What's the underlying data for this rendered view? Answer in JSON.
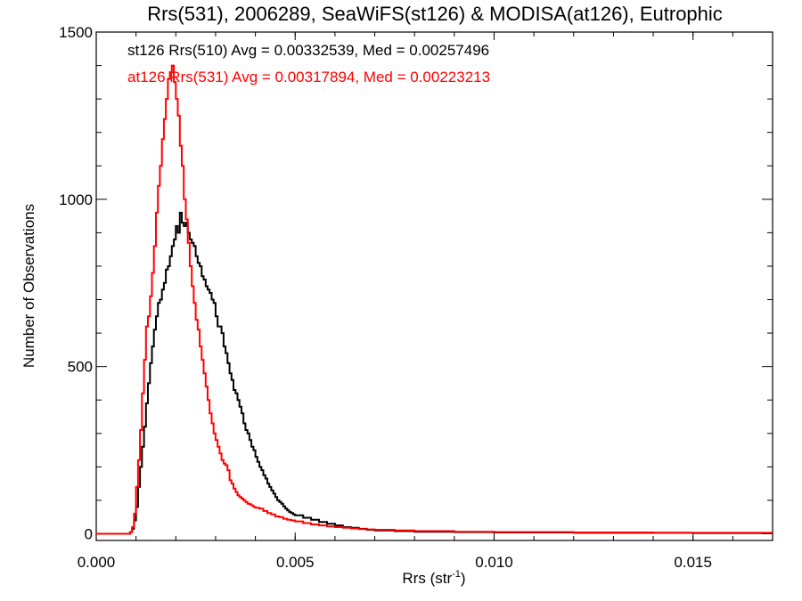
{
  "chart_data": {
    "type": "line",
    "title": "Rrs(531), 2006289, SeaWiFS(st126) & MODISA(at126), Eutrophic",
    "xlabel_main": "Rrs (str",
    "xlabel_sup": "-1",
    "xlabel_close": ")",
    "ylabel": "Number of Observations",
    "xlim": [
      0.0,
      0.017
    ],
    "ylim": [
      -20,
      1500
    ],
    "xticks": [
      {
        "value": 0.0,
        "label": "0.000"
      },
      {
        "value": 0.005,
        "label": "0.005"
      },
      {
        "value": 0.01,
        "label": "0.010"
      },
      {
        "value": 0.015,
        "label": "0.015"
      }
    ],
    "yticks": [
      {
        "value": 0,
        "label": "0"
      },
      {
        "value": 500,
        "label": "500"
      },
      {
        "value": 1000,
        "label": "1000"
      },
      {
        "value": 1500,
        "label": "1500"
      }
    ],
    "grid": false,
    "legend_placement": "top-left",
    "series": [
      {
        "name": "st126 Rrs(510) Avg = 0.00332539, Med = 0.00257496",
        "color": "#000000",
        "points": [
          [
            0.0,
            0
          ],
          [
            0.0007,
            0
          ],
          [
            0.00085,
            5
          ],
          [
            0.0009,
            15
          ],
          [
            0.00095,
            40
          ],
          [
            0.001,
            80
          ],
          [
            0.00105,
            140
          ],
          [
            0.0011,
            200
          ],
          [
            0.00115,
            260
          ],
          [
            0.0012,
            320
          ],
          [
            0.00125,
            390
          ],
          [
            0.0013,
            450
          ],
          [
            0.00135,
            510
          ],
          [
            0.0014,
            560
          ],
          [
            0.00145,
            610
          ],
          [
            0.0015,
            650
          ],
          [
            0.00155,
            690
          ],
          [
            0.0016,
            700
          ],
          [
            0.00165,
            730
          ],
          [
            0.0017,
            750
          ],
          [
            0.00175,
            790
          ],
          [
            0.0018,
            800
          ],
          [
            0.00185,
            830
          ],
          [
            0.0019,
            860
          ],
          [
            0.00195,
            880
          ],
          [
            0.002,
            920
          ],
          [
            0.00205,
            900
          ],
          [
            0.0021,
            960
          ],
          [
            0.00215,
            930
          ],
          [
            0.0022,
            920
          ],
          [
            0.00225,
            930
          ],
          [
            0.0023,
            900
          ],
          [
            0.00235,
            880
          ],
          [
            0.0024,
            870
          ],
          [
            0.00245,
            860
          ],
          [
            0.0025,
            830
          ],
          [
            0.00255,
            810
          ],
          [
            0.0026,
            800
          ],
          [
            0.00265,
            770
          ],
          [
            0.0027,
            760
          ],
          [
            0.00275,
            740
          ],
          [
            0.0028,
            730
          ],
          [
            0.00285,
            720
          ],
          [
            0.0029,
            700
          ],
          [
            0.00295,
            690
          ],
          [
            0.003,
            650
          ],
          [
            0.00305,
            620
          ],
          [
            0.0031,
            620
          ],
          [
            0.00315,
            600
          ],
          [
            0.0032,
            560
          ],
          [
            0.00325,
            540
          ],
          [
            0.0033,
            510
          ],
          [
            0.00335,
            480
          ],
          [
            0.0034,
            460
          ],
          [
            0.00345,
            430
          ],
          [
            0.0035,
            420
          ],
          [
            0.00355,
            400
          ],
          [
            0.0036,
            380
          ],
          [
            0.00365,
            360
          ],
          [
            0.0037,
            330
          ],
          [
            0.00375,
            310
          ],
          [
            0.0038,
            300
          ],
          [
            0.00385,
            280
          ],
          [
            0.0039,
            260
          ],
          [
            0.00395,
            250
          ],
          [
            0.004,
            230
          ],
          [
            0.00405,
            215
          ],
          [
            0.0041,
            200
          ],
          [
            0.00415,
            190
          ],
          [
            0.0042,
            175
          ],
          [
            0.00425,
            165
          ],
          [
            0.0043,
            150
          ],
          [
            0.00435,
            140
          ],
          [
            0.0044,
            130
          ],
          [
            0.00445,
            120
          ],
          [
            0.0045,
            110
          ],
          [
            0.00455,
            100
          ],
          [
            0.0046,
            95
          ],
          [
            0.00465,
            90
          ],
          [
            0.0047,
            82
          ],
          [
            0.00475,
            75
          ],
          [
            0.0048,
            70
          ],
          [
            0.00485,
            65
          ],
          [
            0.0049,
            62
          ],
          [
            0.00495,
            58
          ],
          [
            0.005,
            55
          ],
          [
            0.0052,
            48
          ],
          [
            0.0054,
            42
          ],
          [
            0.0056,
            35
          ],
          [
            0.0058,
            30
          ],
          [
            0.006,
            25
          ],
          [
            0.0062,
            20
          ],
          [
            0.0064,
            18
          ],
          [
            0.0066,
            15
          ],
          [
            0.0068,
            12
          ],
          [
            0.007,
            10
          ],
          [
            0.0075,
            8
          ],
          [
            0.008,
            6
          ],
          [
            0.009,
            5
          ],
          [
            0.01,
            4
          ],
          [
            0.011,
            4
          ],
          [
            0.012,
            3
          ],
          [
            0.013,
            3
          ],
          [
            0.014,
            3
          ],
          [
            0.015,
            2
          ],
          [
            0.016,
            2
          ],
          [
            0.017,
            2
          ]
        ]
      },
      {
        "name": "at126 Rrs(531) Avg = 0.00317894, Med = 0.00223213",
        "color": "#ff0000",
        "points": [
          [
            0.0,
            0
          ],
          [
            0.0007,
            0
          ],
          [
            0.00085,
            5
          ],
          [
            0.0009,
            20
          ],
          [
            0.00095,
            60
          ],
          [
            0.001,
            140
          ],
          [
            0.00105,
            220
          ],
          [
            0.0011,
            310
          ],
          [
            0.00115,
            420
          ],
          [
            0.0012,
            520
          ],
          [
            0.00125,
            620
          ],
          [
            0.0013,
            650
          ],
          [
            0.00135,
            710
          ],
          [
            0.0014,
            780
          ],
          [
            0.00145,
            860
          ],
          [
            0.0015,
            960
          ],
          [
            0.00155,
            1040
          ],
          [
            0.0016,
            1100
          ],
          [
            0.00165,
            1180
          ],
          [
            0.0017,
            1240
          ],
          [
            0.00175,
            1300
          ],
          [
            0.0018,
            1360
          ],
          [
            0.00185,
            1380
          ],
          [
            0.0019,
            1400
          ],
          [
            0.00195,
            1350
          ],
          [
            0.002,
            1300
          ],
          [
            0.00205,
            1250
          ],
          [
            0.0021,
            1160
          ],
          [
            0.00215,
            1100
          ],
          [
            0.0022,
            1000
          ],
          [
            0.00225,
            940
          ],
          [
            0.0023,
            870
          ],
          [
            0.00235,
            800
          ],
          [
            0.0024,
            740
          ],
          [
            0.00245,
            690
          ],
          [
            0.0025,
            640
          ],
          [
            0.00255,
            610
          ],
          [
            0.0026,
            560
          ],
          [
            0.00265,
            520
          ],
          [
            0.0027,
            480
          ],
          [
            0.00275,
            440
          ],
          [
            0.0028,
            400
          ],
          [
            0.00285,
            360
          ],
          [
            0.0029,
            330
          ],
          [
            0.00295,
            300
          ],
          [
            0.003,
            280
          ],
          [
            0.00305,
            260
          ],
          [
            0.0031,
            240
          ],
          [
            0.00315,
            220
          ],
          [
            0.0032,
            210
          ],
          [
            0.00325,
            205
          ],
          [
            0.0033,
            190
          ],
          [
            0.00335,
            160
          ],
          [
            0.0034,
            150
          ],
          [
            0.00345,
            135
          ],
          [
            0.0035,
            125
          ],
          [
            0.00355,
            115
          ],
          [
            0.0036,
            110
          ],
          [
            0.00365,
            105
          ],
          [
            0.0037,
            100
          ],
          [
            0.00375,
            95
          ],
          [
            0.0038,
            90
          ],
          [
            0.00385,
            88
          ],
          [
            0.0039,
            85
          ],
          [
            0.00395,
            80
          ],
          [
            0.004,
            78
          ],
          [
            0.0041,
            75
          ],
          [
            0.0042,
            68
          ],
          [
            0.0043,
            62
          ],
          [
            0.0044,
            58
          ],
          [
            0.0045,
            52
          ],
          [
            0.0046,
            50
          ],
          [
            0.0047,
            45
          ],
          [
            0.0048,
            42
          ],
          [
            0.0049,
            40
          ],
          [
            0.005,
            37
          ],
          [
            0.0052,
            32
          ],
          [
            0.0054,
            28
          ],
          [
            0.0056,
            25
          ],
          [
            0.0058,
            22
          ],
          [
            0.006,
            20
          ],
          [
            0.0062,
            18
          ],
          [
            0.0064,
            16
          ],
          [
            0.0066,
            14
          ],
          [
            0.0068,
            13
          ],
          [
            0.007,
            12
          ],
          [
            0.0075,
            10
          ],
          [
            0.008,
            8
          ],
          [
            0.009,
            6
          ],
          [
            0.01,
            5
          ],
          [
            0.011,
            5
          ],
          [
            0.012,
            4
          ],
          [
            0.013,
            4
          ],
          [
            0.014,
            3
          ],
          [
            0.015,
            3
          ],
          [
            0.016,
            3
          ],
          [
            0.017,
            2
          ]
        ]
      }
    ]
  }
}
